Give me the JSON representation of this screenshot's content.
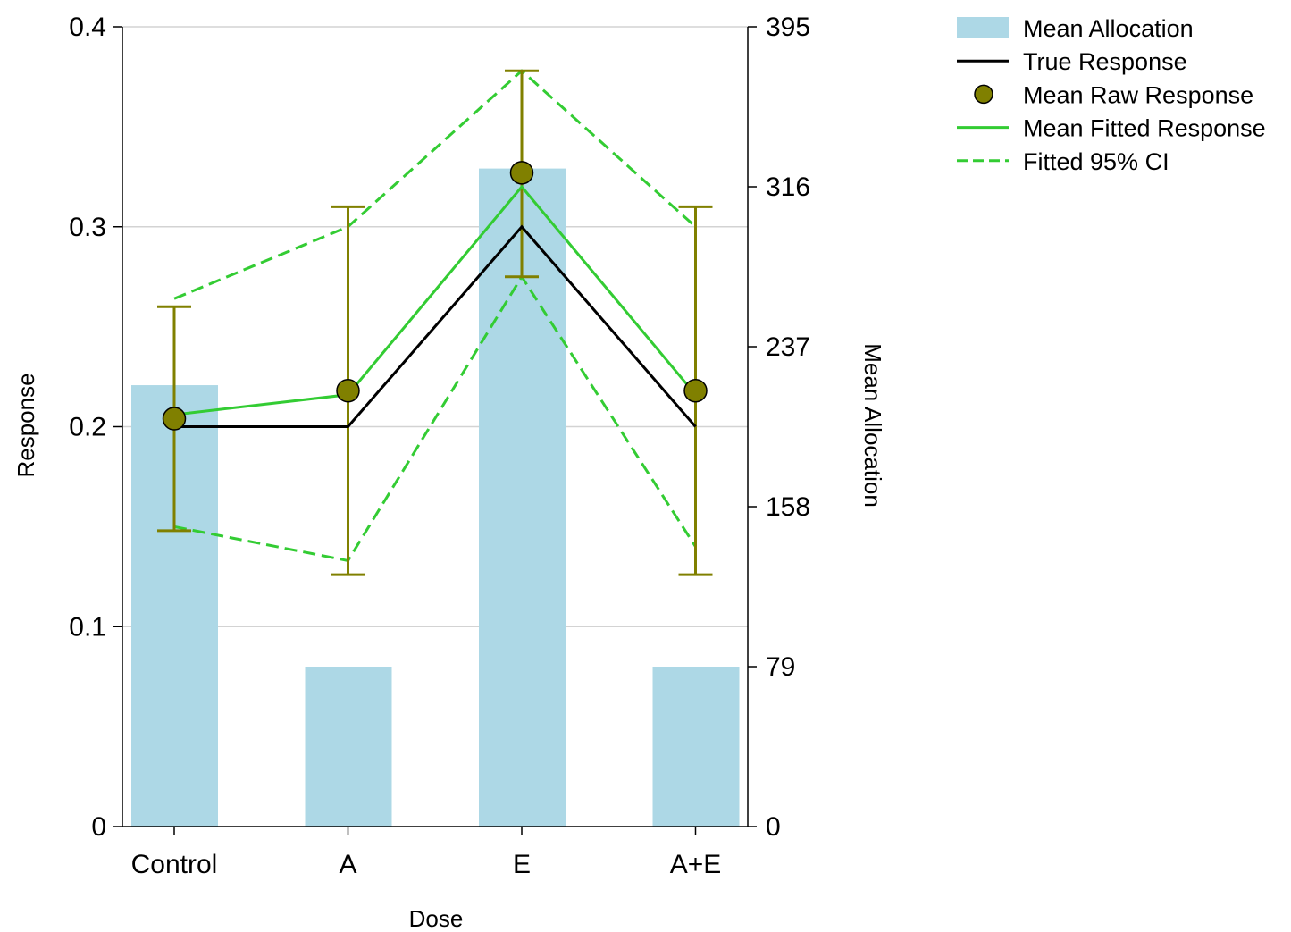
{
  "chart_data": {
    "type": "bar",
    "categories": [
      "Control",
      "A",
      "E",
      "A+E"
    ],
    "xlabel": "Dose",
    "ylabel": "Response",
    "y2label": "Mean Allocation",
    "ylim": [
      0,
      0.4
    ],
    "y2lim": [
      0,
      395
    ],
    "yticks": [
      "0",
      "0.1",
      "0.2",
      "0.3",
      "0.4"
    ],
    "y2ticks": [
      "0",
      "79",
      "158",
      "237",
      "316",
      "395"
    ],
    "grid": "horizontal",
    "legend_position": "top-right",
    "series": [
      {
        "name": "Mean Allocation",
        "kind": "bar",
        "axis": "right",
        "color": "#add8e6",
        "values": [
          218,
          79,
          325,
          79
        ]
      },
      {
        "name": "True Response",
        "kind": "line",
        "axis": "left",
        "color": "#000000",
        "values": [
          0.2,
          0.2,
          0.3,
          0.2
        ]
      },
      {
        "name": "Mean Raw Response",
        "kind": "points",
        "axis": "left",
        "color": "#808000",
        "values": [
          0.204,
          0.218,
          0.327,
          0.218
        ],
        "error_low": [
          0.148,
          0.126,
          0.275,
          0.126
        ],
        "error_high": [
          0.26,
          0.31,
          0.378,
          0.31
        ]
      },
      {
        "name": "Mean Fitted Response",
        "kind": "line",
        "axis": "left",
        "color": "#33cc33",
        "values": [
          0.206,
          0.216,
          0.32,
          0.216
        ]
      },
      {
        "name": "Fitted 95% CI",
        "kind": "dashed-band",
        "axis": "left",
        "color": "#33cc33",
        "upper": [
          0.264,
          0.3,
          0.378,
          0.3
        ],
        "lower": [
          0.15,
          0.133,
          0.275,
          0.14
        ]
      }
    ]
  }
}
